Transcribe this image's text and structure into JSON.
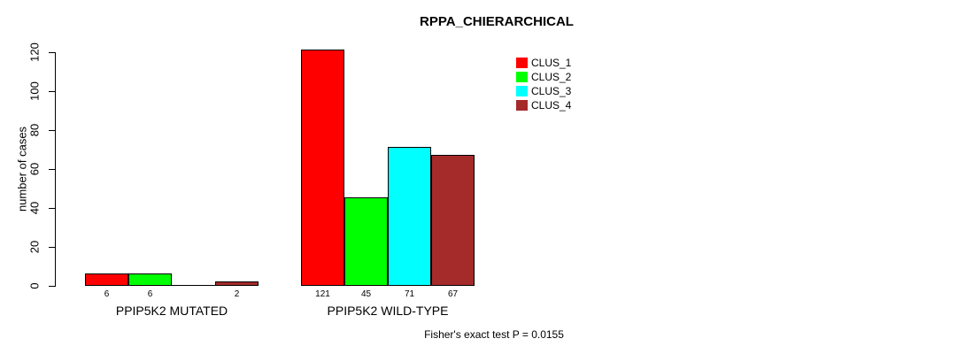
{
  "title": "RPPA_CHIERARCHICAL",
  "footer": "Fisher's exact test P = 0.0155",
  "y_axis": {
    "label": "number of cases",
    "ticks": [
      0,
      20,
      40,
      60,
      80,
      100,
      120
    ]
  },
  "legend": {
    "position": "top-right",
    "items": [
      {
        "label": "CLUS_1",
        "color": "#FF0000"
      },
      {
        "label": "CLUS_2",
        "color": "#00FF00"
      },
      {
        "label": "CLUS_3",
        "color": "#00FFFF"
      },
      {
        "label": "CLUS_4",
        "color": "#A52A2A"
      }
    ]
  },
  "chart_data": {
    "type": "bar",
    "title": "RPPA_CHIERARCHICAL",
    "categories": [
      "PPIP5K2 MUTATED",
      "PPIP5K2 WILD-TYPE"
    ],
    "series": [
      {
        "name": "CLUS_1",
        "color": "#FF0000",
        "values": [
          6,
          121
        ]
      },
      {
        "name": "CLUS_2",
        "color": "#00FF00",
        "values": [
          6,
          45
        ]
      },
      {
        "name": "CLUS_3",
        "color": "#00FFFF",
        "values": [
          0,
          71
        ]
      },
      {
        "name": "CLUS_4",
        "color": "#A52A2A",
        "values": [
          2,
          67
        ]
      }
    ],
    "xlabel": "",
    "ylabel": "number of cases",
    "ylim": [
      0,
      120
    ],
    "grid": false,
    "legend_position": "top-right",
    "bar_value_labels_shown": true,
    "zero_value_labels_hidden": true,
    "annotation": "Fisher's exact test P = 0.0155"
  }
}
